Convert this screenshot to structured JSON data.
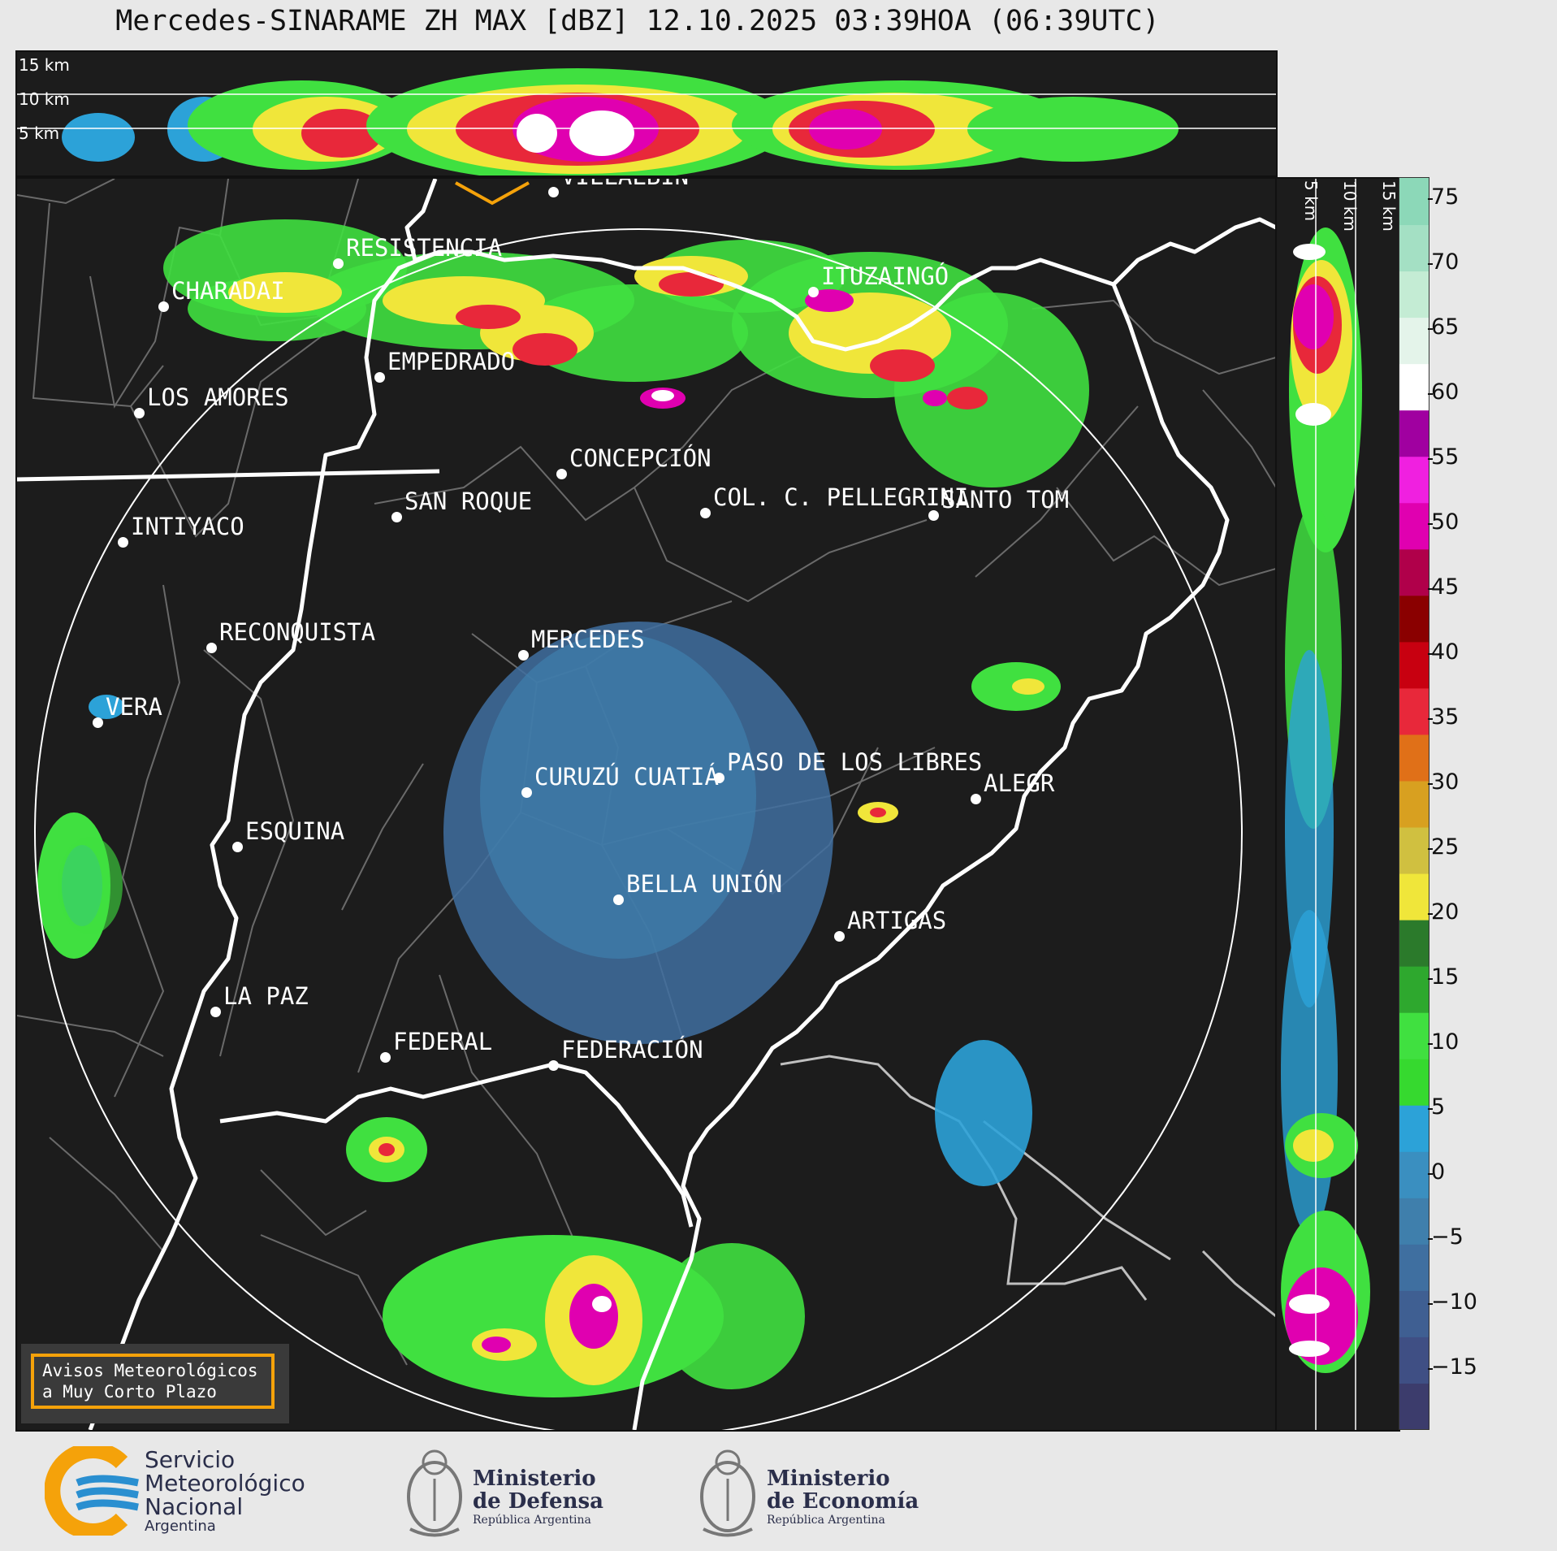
{
  "title": "Mercedes-SINARAME ZH MAX [dBZ] 12.10.2025 03:39HOA (06:39UTC)",
  "altitude_labels_top": [
    "15 km",
    "10 km",
    "5 km"
  ],
  "altitude_labels_side": [
    "5 km",
    "10 km",
    "15 km"
  ],
  "colorbar": {
    "ticks": [
      "75",
      "70",
      "65",
      "60",
      "55",
      "50",
      "45",
      "40",
      "35",
      "30",
      "25",
      "20",
      "15",
      "10",
      "5",
      "0",
      "−5",
      "−10",
      "−15"
    ]
  },
  "cities": [
    {
      "name": "VILLALBÍN"
    },
    {
      "name": "RESISTENCIA"
    },
    {
      "name": "CHARADAI"
    },
    {
      "name": "ITUZAINGÓ"
    },
    {
      "name": "EMPEDRADO"
    },
    {
      "name": "LOS AMORES"
    },
    {
      "name": "CONCEPCIÓN"
    },
    {
      "name": "SAN ROQUE"
    },
    {
      "name": "COL. C. PELLEGRINI"
    },
    {
      "name": "SANTO TOM"
    },
    {
      "name": "INTIYACO"
    },
    {
      "name": "RECONQUISTA"
    },
    {
      "name": "MERCEDES"
    },
    {
      "name": "VERA"
    },
    {
      "name": "PASO DE LOS LIBRES"
    },
    {
      "name": "CURUZÚ CUATIÁ"
    },
    {
      "name": "ALEGR"
    },
    {
      "name": "ESQUINA"
    },
    {
      "name": "BELLA UNIÓN"
    },
    {
      "name": "ARTIGAS"
    },
    {
      "name": "LA PAZ"
    },
    {
      "name": "FEDERAL"
    },
    {
      "name": "FEDERACIÓN"
    }
  ],
  "avisos": {
    "line1": "Avisos Meteorológicos",
    "line2": "a Muy Corto Plazo"
  },
  "footer": {
    "smn": {
      "l1": "Servicio",
      "l2": "Meteorológico",
      "l3": "Nacional",
      "l4": "Argentina"
    },
    "defensa": {
      "l1": "Ministerio",
      "l2": "de Defensa",
      "l3": "República Argentina"
    },
    "economia": {
      "l1": "Ministerio",
      "l2": "de Economía",
      "l3": "República Argentina"
    }
  },
  "colors": {
    "accent": "#f5a20a",
    "panel_bg": "#1c1c1c"
  }
}
